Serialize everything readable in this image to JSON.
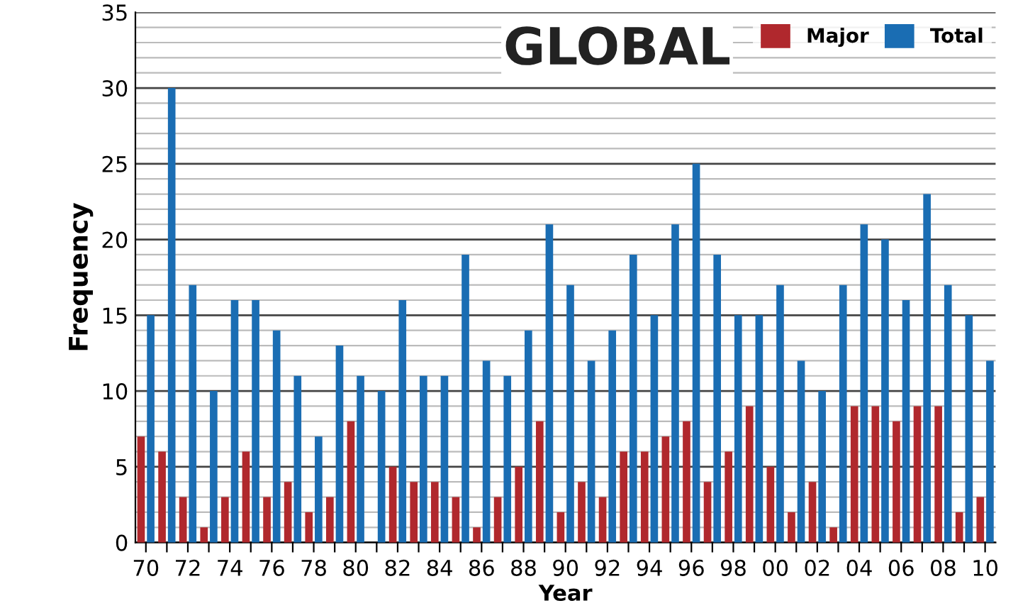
{
  "chart_data": {
    "type": "bar",
    "title": "GLOBAL",
    "xlabel": "Year",
    "ylabel": "Frequency",
    "categories": [
      "70",
      null,
      "72",
      null,
      "74",
      null,
      "76",
      null,
      "78",
      null,
      "80",
      null,
      "82",
      null,
      "84",
      null,
      "86",
      null,
      "88",
      null,
      "90",
      null,
      "92",
      null,
      "94",
      null,
      "96",
      null,
      "98",
      null,
      "00",
      null,
      "02",
      null,
      "04",
      null,
      "06",
      null,
      "08",
      null,
      "10"
    ],
    "series": [
      {
        "name": "Major",
        "color": "#b0282d",
        "values": [
          7,
          6,
          3,
          1,
          3,
          6,
          3,
          4,
          2,
          3,
          8,
          0,
          5,
          4,
          4,
          3,
          1,
          3,
          5,
          8,
          2,
          4,
          3,
          6,
          6,
          7,
          8,
          4,
          6,
          9,
          5,
          2,
          4,
          1,
          9,
          9,
          8,
          9,
          9,
          2,
          3
        ]
      },
      {
        "name": "Total",
        "color": "#1a6db3",
        "values": [
          15,
          30,
          17,
          10,
          16,
          16,
          14,
          11,
          7,
          13,
          11,
          10,
          16,
          11,
          11,
          19,
          12,
          11,
          14,
          21,
          17,
          12,
          14,
          19,
          15,
          21,
          25,
          19,
          15,
          15,
          17,
          12,
          10,
          17,
          21,
          20,
          16,
          23,
          17,
          15,
          12
        ]
      }
    ],
    "ylim": [
      0,
      35
    ],
    "yticks": [
      0,
      5,
      10,
      15,
      20,
      25,
      30,
      35
    ],
    "grid": "y",
    "legend": "top right"
  }
}
